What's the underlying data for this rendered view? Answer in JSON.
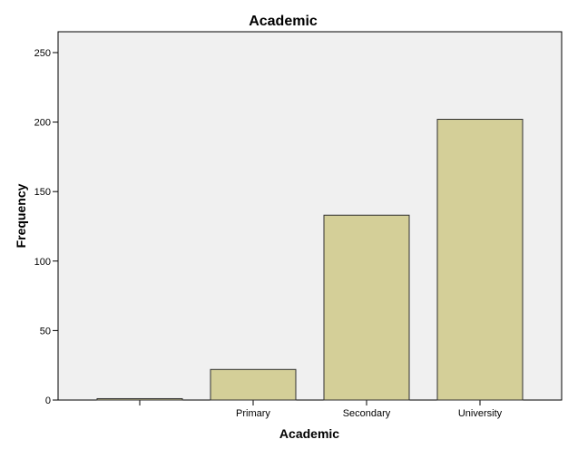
{
  "chart_data": {
    "type": "bar",
    "title": "Academic",
    "xlabel": "Academic",
    "ylabel": "Frequency",
    "categories": [
      "",
      "Primary",
      "Secondary",
      "University"
    ],
    "values": [
      1,
      22,
      133,
      202
    ],
    "ylim": [
      0,
      265
    ],
    "yticks": [
      0,
      50,
      100,
      150,
      200,
      250
    ],
    "ytick_labels": [
      "0",
      "50",
      "100",
      "150",
      "200",
      "250"
    ],
    "grid": false,
    "legend": "none",
    "colors": {
      "bar_fill": "#d4cf98",
      "bar_stroke": "#2f2f2f",
      "plot_background": "#f0f0f0",
      "axis": "#000000"
    }
  }
}
